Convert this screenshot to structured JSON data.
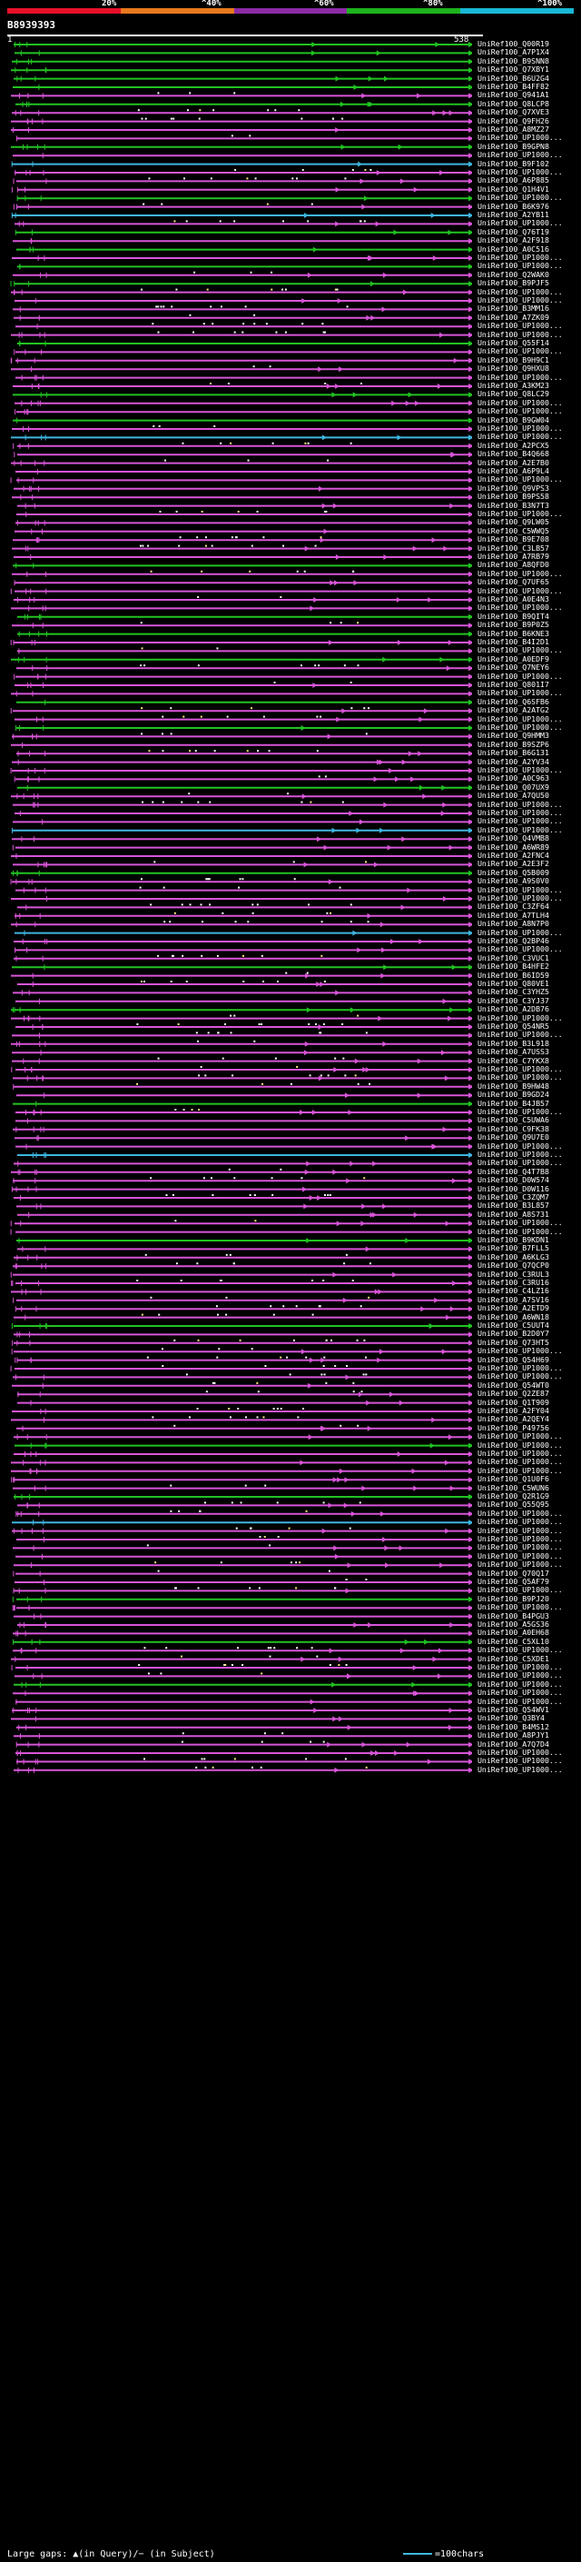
{
  "legend": {
    "colors": [
      "#e8102a",
      "#e8781e",
      "#8c2ba5",
      "#1db31d",
      "#18b8d4"
    ],
    "labels": [
      "20%",
      "^40%",
      "^60%",
      "^80%",
      "^100%"
    ]
  },
  "query": {
    "name": "B8939393",
    "start": "1",
    "end": "538"
  },
  "hits": [
    {
      "label": "UniRef100_Q00R19",
      "color": "green"
    },
    {
      "label": "UniRef100_A7P1X4",
      "color": "green"
    },
    {
      "label": "UniRef100_B9SNN8",
      "color": "green"
    },
    {
      "label": "UniRef100_Q7XBY1",
      "color": "green"
    },
    {
      "label": "UniRef100_B6U2G4",
      "color": "green"
    },
    {
      "label": "UniRef100_B4FF82",
      "color": "green"
    },
    {
      "label": "UniRef100_Q941A1",
      "color": "magenta"
    },
    {
      "label": "UniRef100_Q8LCP8",
      "color": "green"
    },
    {
      "label": "UniRef100_Q7XVE3",
      "color": "magenta"
    },
    {
      "label": "UniRef100_Q9FH26",
      "color": "magenta"
    },
    {
      "label": "UniRef100_A8MZ27",
      "color": "magenta"
    },
    {
      "label": "UniRef100_UP1000...",
      "color": "magenta"
    },
    {
      "label": "UniRef100_B9GPN8",
      "color": "green"
    },
    {
      "label": "UniRef100_UP1000...",
      "color": "magenta"
    },
    {
      "label": "UniRef100_B9F102",
      "color": "cyan"
    },
    {
      "label": "UniRef100_UP1000...",
      "color": "magenta"
    },
    {
      "label": "UniRef100_A6P885",
      "color": "magenta"
    },
    {
      "label": "UniRef100_Q1H4V1",
      "color": "magenta"
    },
    {
      "label": "UniRef100_UP1000...",
      "color": "green"
    },
    {
      "label": "UniRef100_B6K976",
      "color": "magenta"
    },
    {
      "label": "UniRef100_A2YB11",
      "color": "cyan"
    },
    {
      "label": "UniRef100_UP1000...",
      "color": "magenta"
    },
    {
      "label": "UniRef100_Q76T19",
      "color": "green"
    },
    {
      "label": "UniRef100_A2F918",
      "color": "magenta"
    },
    {
      "label": "UniRef100_A0C516",
      "color": "green"
    },
    {
      "label": "UniRef100_UP1000...",
      "color": "magenta"
    },
    {
      "label": "UniRef100_UP1000...",
      "color": "green"
    },
    {
      "label": "UniRef100_Q2WAK0",
      "color": "magenta"
    },
    {
      "label": "UniRef100_B9PJF5",
      "color": "green"
    },
    {
      "label": "UniRef100_UP1000...",
      "color": "magenta"
    },
    {
      "label": "UniRef100_UP1000...",
      "color": "magenta"
    },
    {
      "label": "UniRef100_B3MM16",
      "color": "magenta"
    },
    {
      "label": "UniRef100_A7ZK09",
      "color": "magenta"
    },
    {
      "label": "UniRef100_UP1000...",
      "color": "magenta"
    },
    {
      "label": "UniRef100_UP1000...",
      "color": "magenta"
    },
    {
      "label": "UniRef100_Q55F14",
      "color": "green"
    },
    {
      "label": "UniRef100_UP1000...",
      "color": "magenta"
    },
    {
      "label": "UniRef100_B9H9C1",
      "color": "magenta"
    },
    {
      "label": "UniRef100_Q9HXU8",
      "color": "magenta"
    },
    {
      "label": "UniRef100_UP1000...",
      "color": "magenta"
    },
    {
      "label": "UniRef100_A3KM23",
      "color": "magenta"
    },
    {
      "label": "UniRef100_Q8LC29",
      "color": "green"
    },
    {
      "label": "UniRef100_UP1000...",
      "color": "magenta"
    },
    {
      "label": "UniRef100_UP1000...",
      "color": "magenta"
    },
    {
      "label": "UniRef100_B9GW04",
      "color": "green"
    },
    {
      "label": "UniRef100_UP1000...",
      "color": "magenta"
    },
    {
      "label": "UniRef100_UP1000...",
      "color": "cyan"
    },
    {
      "label": "UniRef100_A2PCX5",
      "color": "magenta"
    },
    {
      "label": "UniRef100_B4Q668",
      "color": "magenta"
    },
    {
      "label": "UniRef100_A2E7B0",
      "color": "magenta"
    },
    {
      "label": "UniRef100_A6P9L4",
      "color": "magenta"
    },
    {
      "label": "UniRef100_UP1000...",
      "color": "magenta"
    },
    {
      "label": "UniRef100_Q9VPS3",
      "color": "magenta"
    },
    {
      "label": "UniRef100_B9PS58",
      "color": "magenta"
    },
    {
      "label": "UniRef100_B3N7T3",
      "color": "magenta"
    },
    {
      "label": "UniRef100_UP1000...",
      "color": "magenta"
    },
    {
      "label": "UniRef100_Q9LW05",
      "color": "magenta"
    },
    {
      "label": "UniRef100_C5WWQ5",
      "color": "magenta"
    },
    {
      "label": "UniRef100_B9E708",
      "color": "magenta"
    },
    {
      "label": "UniRef100_C3LB57",
      "color": "magenta"
    },
    {
      "label": "UniRef100_A7RB79",
      "color": "magenta"
    },
    {
      "label": "UniRef100_A8QFD0",
      "color": "green"
    },
    {
      "label": "UniRef100_UP1000...",
      "color": "magenta"
    },
    {
      "label": "UniRef100_Q7UF65",
      "color": "magenta"
    },
    {
      "label": "UniRef100_UP1000...",
      "color": "magenta"
    },
    {
      "label": "UniRef100_A0E4N3",
      "color": "magenta"
    },
    {
      "label": "UniRef100_UP1000...",
      "color": "magenta"
    },
    {
      "label": "UniRef100_B9QIT4",
      "color": "green"
    },
    {
      "label": "UniRef100_B9P0Z5",
      "color": "magenta"
    },
    {
      "label": "UniRef100_B6KNE3",
      "color": "green"
    },
    {
      "label": "UniRef100_B4I2D1",
      "color": "magenta"
    },
    {
      "label": "UniRef100_UP1000...",
      "color": "magenta"
    },
    {
      "label": "UniRef100_A0EDF9",
      "color": "green"
    },
    {
      "label": "UniRef100_Q7NEY6",
      "color": "magenta"
    },
    {
      "label": "UniRef100_UP1000...",
      "color": "magenta"
    },
    {
      "label": "UniRef100_Q801I7",
      "color": "magenta"
    },
    {
      "label": "UniRef100_UP1000...",
      "color": "magenta"
    },
    {
      "label": "UniRef100_Q6SFB6",
      "color": "green"
    },
    {
      "label": "UniRef100_A2ATG2",
      "color": "magenta"
    },
    {
      "label": "UniRef100_UP1000...",
      "color": "magenta"
    },
    {
      "label": "UniRef100_UP1000...",
      "color": "green"
    },
    {
      "label": "UniRef100_Q9HMM3",
      "color": "magenta"
    },
    {
      "label": "UniRef100_B9SZP6",
      "color": "magenta"
    },
    {
      "label": "UniRef100_B6G131",
      "color": "magenta"
    },
    {
      "label": "UniRef100_A2YV34",
      "color": "magenta"
    },
    {
      "label": "UniRef100_UP1000...",
      "color": "magenta"
    },
    {
      "label": "UniRef100_A0C963",
      "color": "magenta"
    },
    {
      "label": "UniRef100_Q07UX9",
      "color": "green"
    },
    {
      "label": "UniRef100_A7QU50",
      "color": "magenta"
    },
    {
      "label": "UniRef100_UP1000...",
      "color": "magenta"
    },
    {
      "label": "UniRef100_UP1000...",
      "color": "magenta"
    },
    {
      "label": "UniRef100_UP1000...",
      "color": "magenta"
    },
    {
      "label": "UniRef100_UP1000...",
      "color": "cyan"
    },
    {
      "label": "UniRef100_Q4VMB8",
      "color": "magenta"
    },
    {
      "label": "UniRef100_A6WR89",
      "color": "magenta"
    },
    {
      "label": "UniRef100_A2FNC4",
      "color": "magenta"
    },
    {
      "label": "UniRef100_A2E3F2",
      "color": "magenta"
    },
    {
      "label": "UniRef100_Q5B009",
      "color": "green"
    },
    {
      "label": "UniRef100_A9S0V0",
      "color": "magenta"
    },
    {
      "label": "UniRef100_UP1000...",
      "color": "magenta"
    },
    {
      "label": "UniRef100_UP1000...",
      "color": "magenta"
    },
    {
      "label": "UniRef100_C3ZF64",
      "color": "magenta"
    },
    {
      "label": "UniRef100_A7TLH4",
      "color": "magenta"
    },
    {
      "label": "UniRef100_A8N7P0",
      "color": "magenta"
    },
    {
      "label": "UniRef100_UP1000...",
      "color": "cyan"
    },
    {
      "label": "UniRef100_Q2BP46",
      "color": "magenta"
    },
    {
      "label": "UniRef100_UP1000...",
      "color": "magenta"
    },
    {
      "label": "UniRef100_C3VUC1",
      "color": "magenta"
    },
    {
      "label": "UniRef100_B4HFE2",
      "color": "green"
    },
    {
      "label": "UniRef100_B6ID59",
      "color": "magenta"
    },
    {
      "label": "UniRef100_Q80VE1",
      "color": "magenta"
    },
    {
      "label": "UniRef100_C3YHZ5",
      "color": "magenta"
    },
    {
      "label": "UniRef100_C3YJ37",
      "color": "magenta"
    },
    {
      "label": "UniRef100_A2DB76",
      "color": "green"
    },
    {
      "label": "UniRef100_UP1000...",
      "color": "magenta"
    },
    {
      "label": "UniRef100_Q54NR5",
      "color": "magenta"
    },
    {
      "label": "UniRef100_UP1000...",
      "color": "magenta"
    },
    {
      "label": "UniRef100_B3L918",
      "color": "magenta"
    },
    {
      "label": "UniRef100_A7USS3",
      "color": "magenta"
    },
    {
      "label": "UniRef100_C7YKX8",
      "color": "magenta"
    },
    {
      "label": "UniRef100_UP1000...",
      "color": "magenta"
    },
    {
      "label": "UniRef100_UP1000...",
      "color": "magenta"
    },
    {
      "label": "UniRef100_B9HW48",
      "color": "magenta"
    },
    {
      "label": "UniRef100_B9GD24",
      "color": "magenta"
    },
    {
      "label": "UniRef100_B4JB57",
      "color": "green"
    },
    {
      "label": "UniRef100_UP1000...",
      "color": "magenta"
    },
    {
      "label": "UniRef100_C5UWA6",
      "color": "magenta"
    },
    {
      "label": "UniRef100_C9FK38",
      "color": "magenta"
    },
    {
      "label": "UniRef100_Q9U7E0",
      "color": "magenta"
    },
    {
      "label": "UniRef100_UP1000...",
      "color": "magenta"
    },
    {
      "label": "UniRef100_UP1000...",
      "color": "cyan"
    },
    {
      "label": "UniRef100_UP1000...",
      "color": "magenta"
    },
    {
      "label": "UniRef100_Q4T7B8",
      "color": "magenta"
    },
    {
      "label": "UniRef100_D0W574",
      "color": "magenta"
    },
    {
      "label": "UniRef100_D0W116",
      "color": "magenta"
    },
    {
      "label": "UniRef100_C3ZQM7",
      "color": "magenta"
    },
    {
      "label": "UniRef100_B3L857",
      "color": "magenta"
    },
    {
      "label": "UniRef100_A8S731",
      "color": "magenta"
    },
    {
      "label": "UniRef100_UP1000...",
      "color": "magenta"
    },
    {
      "label": "UniRef100_UP1000...",
      "color": "magenta"
    },
    {
      "label": "UniRef100_B9KDN1",
      "color": "green"
    },
    {
      "label": "UniRef100_B7FLL5",
      "color": "magenta"
    },
    {
      "label": "UniRef100_A6KLG3",
      "color": "magenta"
    },
    {
      "label": "UniRef100_Q7QCP0",
      "color": "magenta"
    },
    {
      "label": "UniRef100_C3RUL3",
      "color": "magenta"
    },
    {
      "label": "UniRef100_C3RU16",
      "color": "magenta"
    },
    {
      "label": "UniRef100_C4LZ16",
      "color": "magenta"
    },
    {
      "label": "UniRef100_A7SV16",
      "color": "magenta"
    },
    {
      "label": "UniRef100_A2ETD9",
      "color": "magenta"
    },
    {
      "label": "UniRef100_A6WN18",
      "color": "magenta"
    },
    {
      "label": "UniRef100_C5UUT4",
      "color": "green"
    },
    {
      "label": "UniRef100_B2D0Y7",
      "color": "magenta"
    },
    {
      "label": "UniRef100_Q73HT5",
      "color": "magenta"
    },
    {
      "label": "UniRef100_UP1000...",
      "color": "magenta"
    },
    {
      "label": "UniRef100_Q54H69",
      "color": "magenta"
    },
    {
      "label": "UniRef100_UP1000...",
      "color": "magenta"
    },
    {
      "label": "UniRef100_UP1000...",
      "color": "magenta"
    },
    {
      "label": "UniRef100_Q54WT0",
      "color": "magenta"
    },
    {
      "label": "UniRef100_Q2ZE87",
      "color": "magenta"
    },
    {
      "label": "UniRef100_Q1T909",
      "color": "magenta"
    },
    {
      "label": "UniRef100_A2FY04",
      "color": "magenta"
    },
    {
      "label": "UniRef100_A2QEY4",
      "color": "magenta"
    },
    {
      "label": "UniRef100_P49756",
      "color": "magenta"
    },
    {
      "label": "UniRef100_UP1000...",
      "color": "magenta"
    },
    {
      "label": "UniRef100_UP1000...",
      "color": "green"
    },
    {
      "label": "UniRef100_UP1000...",
      "color": "magenta"
    },
    {
      "label": "UniRef100_UP1000...",
      "color": "magenta"
    },
    {
      "label": "UniRef100_UP1000...",
      "color": "magenta"
    },
    {
      "label": "UniRef100_Q1U0F6",
      "color": "magenta"
    },
    {
      "label": "UniRef100_C5WUN6",
      "color": "magenta"
    },
    {
      "label": "UniRef100_Q2R1G9",
      "color": "green"
    },
    {
      "label": "UniRef100_Q55Q95",
      "color": "magenta"
    },
    {
      "label": "UniRef100_UP1000...",
      "color": "magenta"
    },
    {
      "label": "UniRef100_UP1000...",
      "color": "cyan"
    },
    {
      "label": "UniRef100_UP1000...",
      "color": "magenta"
    },
    {
      "label": "UniRef100_UP1000...",
      "color": "magenta"
    },
    {
      "label": "UniRef100_UP1000...",
      "color": "magenta"
    },
    {
      "label": "UniRef100_UP1000...",
      "color": "magenta"
    },
    {
      "label": "UniRef100_UP1000...",
      "color": "magenta"
    },
    {
      "label": "UniRef100_Q70Q17",
      "color": "magenta"
    },
    {
      "label": "UniRef100_Q5AF79",
      "color": "magenta"
    },
    {
      "label": "UniRef100_UP1000...",
      "color": "magenta"
    },
    {
      "label": "UniRef100_B9PJ20",
      "color": "green"
    },
    {
      "label": "UniRef100_UP1000...",
      "color": "magenta"
    },
    {
      "label": "UniRef100_B4PGU3",
      "color": "magenta"
    },
    {
      "label": "UniRef100_A5GS36",
      "color": "magenta"
    },
    {
      "label": "UniRef100_A0EH68",
      "color": "magenta"
    },
    {
      "label": "UniRef100_C5XL10",
      "color": "green"
    },
    {
      "label": "UniRef100_UP1000...",
      "color": "magenta"
    },
    {
      "label": "UniRef100_C5XDE1",
      "color": "magenta"
    },
    {
      "label": "UniRef100_UP1000...",
      "color": "magenta"
    },
    {
      "label": "UniRef100_UP1000...",
      "color": "magenta"
    },
    {
      "label": "UniRef100_UP1000...",
      "color": "green"
    },
    {
      "label": "UniRef100_UP1000...",
      "color": "magenta"
    },
    {
      "label": "UniRef100_UP1000...",
      "color": "magenta"
    },
    {
      "label": "UniRef100_Q54WV1",
      "color": "magenta"
    },
    {
      "label": "UniRef100_Q3BY4",
      "color": "magenta"
    },
    {
      "label": "UniRef100_B4MS12",
      "color": "magenta"
    },
    {
      "label": "UniRef100_A8PJY1",
      "color": "magenta"
    },
    {
      "label": "UniRef100_A7Q7D4",
      "color": "magenta"
    },
    {
      "label": "UniRef100_UP1000...",
      "color": "magenta"
    },
    {
      "label": "UniRef100_UP1000...",
      "color": "magenta"
    },
    {
      "label": "UniRef100_UP1000...",
      "color": "magenta"
    }
  ],
  "palette": {
    "green": "#22c322",
    "magenta": "#d855d8",
    "cyan": "#3fb6e0",
    "white": "#ffffff",
    "yellow": "#ffe680"
  },
  "footer": {
    "left": "Large gaps: ▲(in Query)/− (in Subject)",
    "right": "=100chars"
  }
}
